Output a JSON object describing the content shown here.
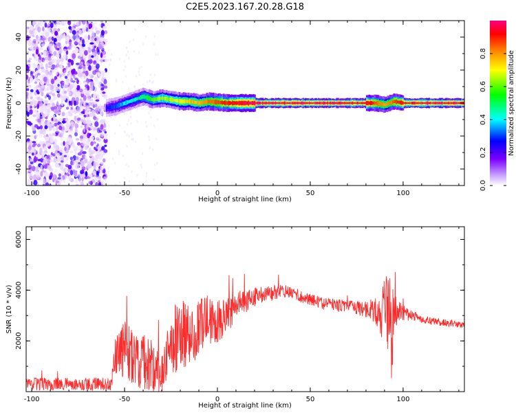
{
  "title": "C2E5.2023.167.20.28.G18",
  "chart_data": [
    {
      "type": "heatmap",
      "xlabel": "Height of straight line (km)",
      "ylabel": "Frequency (Hz)",
      "xlim": [
        -103,
        133
      ],
      "ylim": [
        -50,
        50
      ],
      "xticks": [
        "-100",
        "-50",
        "0",
        "50",
        "100"
      ],
      "xtick_values": [
        -100,
        -50,
        0,
        50,
        100
      ],
      "yticks": [
        "-40",
        "-20",
        "0",
        "20",
        "40"
      ],
      "ytick_values": [
        -40,
        -20,
        0,
        20,
        40
      ],
      "colorbar": {
        "label": "Normalized spectral amplitude",
        "range": [
          0,
          1
        ],
        "ticks": [
          "0.0",
          "0.2",
          "0.4",
          "0.6",
          "0.8"
        ],
        "tick_values": [
          0.0,
          0.2,
          0.4,
          0.6,
          0.8
        ],
        "colormap": [
          "#ffffff",
          "#d8b8ff",
          "#7b00ff",
          "#0000ff",
          "#00ffff",
          "#00ff00",
          "#ffff00",
          "#ff8000",
          "#ff0000",
          "#ff0080"
        ]
      },
      "ridge": {
        "x": [
          -60,
          -55,
          -50,
          -45,
          -40,
          -35,
          -30,
          -25,
          -20,
          -15,
          -10,
          -5,
          0,
          5,
          10,
          20,
          40,
          60,
          80,
          85,
          90,
          95,
          100,
          110,
          120,
          133
        ],
        "freq_hz": [
          -3,
          -2,
          0,
          2,
          4,
          2,
          3,
          2,
          1,
          1,
          0,
          1,
          0.5,
          0,
          0,
          0,
          0,
          0,
          0,
          0,
          -1,
          1,
          0,
          0,
          0,
          0
        ],
        "amplitude": [
          0.3,
          0.35,
          0.4,
          0.45,
          0.5,
          0.55,
          0.6,
          0.6,
          0.65,
          0.7,
          0.7,
          0.75,
          0.8,
          0.85,
          0.9,
          0.95,
          0.95,
          0.95,
          0.9,
          0.8,
          0.7,
          0.8,
          0.9,
          0.95,
          0.95,
          0.95
        ]
      },
      "noise_region_x": [
        -103,
        -60
      ]
    },
    {
      "type": "line",
      "xlabel": "Height of straight line (km)",
      "ylabel": "SNR (10 * v/v)",
      "xlim": [
        -103,
        133
      ],
      "ylim": [
        0,
        6500
      ],
      "xticks": [
        "-100",
        "-50",
        "0",
        "50",
        "100"
      ],
      "xtick_values": [
        -100,
        -50,
        0,
        50,
        100
      ],
      "yticks": [
        "2000",
        "4000",
        "6000"
      ],
      "ytick_values": [
        2000,
        4000,
        6000
      ],
      "series": [
        {
          "color": "#ff2a2a",
          "x": [
            -103,
            -90,
            -80,
            -70,
            -60,
            -57,
            -55,
            -50,
            -45,
            -40,
            -35,
            -30,
            -25,
            -20,
            -15,
            -10,
            -5,
            0,
            5,
            10,
            15,
            20,
            25,
            30,
            35,
            40,
            45,
            50,
            55,
            60,
            65,
            70,
            75,
            80,
            85,
            88,
            91,
            93,
            94,
            95,
            97,
            100,
            105,
            110,
            115,
            120,
            125,
            133
          ],
          "y": [
            300,
            300,
            300,
            300,
            300,
            300,
            1500,
            1600,
            1400,
            1300,
            1000,
            700,
            1900,
            2200,
            2300,
            2600,
            2800,
            2700,
            3000,
            3300,
            3600,
            3700,
            3800,
            3900,
            4000,
            3900,
            3750,
            3650,
            3500,
            3450,
            3400,
            3350,
            3300,
            3250,
            3200,
            3000,
            3200,
            3300,
            900,
            3400,
            3000,
            3100,
            3000,
            2850,
            2800,
            2750,
            2700,
            2600
          ],
          "noise_amp": [
            250,
            250,
            250,
            250,
            250,
            250,
            900,
            1200,
            1300,
            1200,
            1100,
            800,
            1400,
            1500,
            1200,
            1300,
            1000,
            900,
            700,
            600,
            500,
            400,
            350,
            300,
            250,
            250,
            250,
            250,
            250,
            250,
            250,
            250,
            250,
            350,
            500,
            900,
            1500,
            1800,
            1200,
            900,
            600,
            300,
            200,
            150,
            150,
            150,
            150,
            150
          ]
        }
      ]
    }
  ]
}
